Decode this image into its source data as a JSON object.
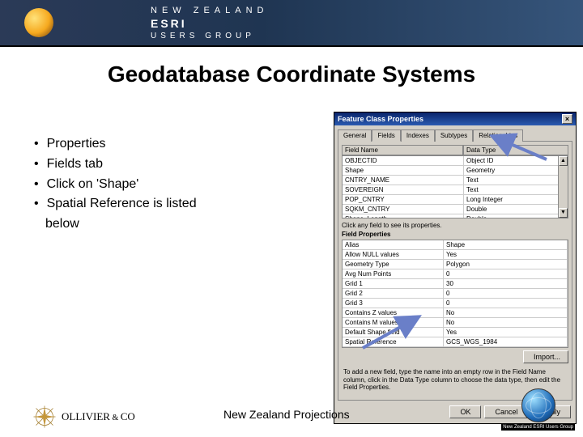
{
  "banner": {
    "line1": "NEW ZEALAND",
    "line2": "ESRI",
    "line3": "USERS GROUP"
  },
  "title": "Geodatabase Coordinate Systems",
  "bullets": [
    "Properties",
    "Fields tab",
    "Click on 'Shape'",
    "Spatial Reference is listed"
  ],
  "bullet_cont": "below",
  "dialog": {
    "title": "Feature Class Properties",
    "close": "×",
    "tabs": [
      "General",
      "Fields",
      "Indexes",
      "Subtypes",
      "Relationships"
    ],
    "active_tab": 1,
    "grid_head": {
      "name": "Field Name",
      "type": "Data Type"
    },
    "fields": [
      {
        "name": "OBJECTID",
        "type": "Object ID"
      },
      {
        "name": "Shape",
        "type": "Geometry",
        "selected": false
      },
      {
        "name": "CNTRY_NAME",
        "type": "Text"
      },
      {
        "name": "SOVEREIGN",
        "type": "Text"
      },
      {
        "name": "POP_CNTRY",
        "type": "Long Integer"
      },
      {
        "name": "SQKM_CNTRY",
        "type": "Double"
      },
      {
        "name": "Shape_Length",
        "type": "Double"
      }
    ],
    "section1": "Click any field to see its properties.",
    "section2": "Field Properties",
    "props": [
      {
        "name": "Alias",
        "value": "Shape"
      },
      {
        "name": "Allow NULL values",
        "value": "Yes"
      },
      {
        "name": "Geometry Type",
        "value": "Polygon"
      },
      {
        "name": "Avg Num Points",
        "value": "0"
      },
      {
        "name": "Grid 1",
        "value": "30"
      },
      {
        "name": "Grid 2",
        "value": "0"
      },
      {
        "name": "Grid 3",
        "value": "0"
      },
      {
        "name": "Contains Z values",
        "value": "No"
      },
      {
        "name": "Contains M values",
        "value": "No"
      },
      {
        "name": "Default Shape field",
        "value": "Yes"
      },
      {
        "name": "Spatial Reference",
        "value": "GCS_WGS_1984"
      }
    ],
    "import_btn": "Import...",
    "hint": "To add a new field, type the name into an empty row in the Field Name column, click in the Data Type column to choose the data type, then edit the Field Properties.",
    "buttons": {
      "ok": "OK",
      "cancel": "Cancel",
      "apply": "Apply"
    }
  },
  "footer": {
    "brand_main": "OLLIVIER",
    "brand_amp": " & ",
    "brand_co": "CO",
    "mid": "New Zealand Projections",
    "caption": "New Zealand ESRI Users Group"
  },
  "colors": {
    "arrow": "#6a7fc8",
    "titlebar": "#0a246a",
    "dlg_bg": "#d4d0c8"
  }
}
